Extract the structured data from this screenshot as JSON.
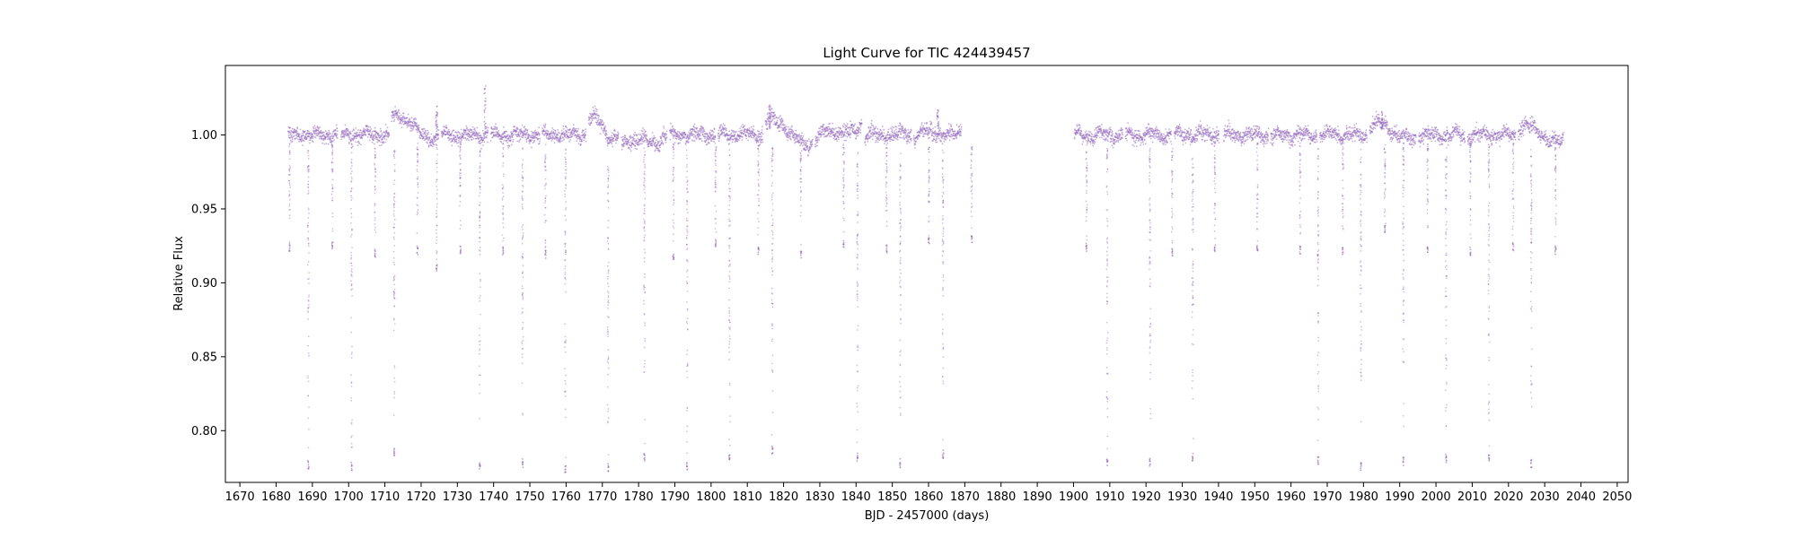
{
  "chart_data": {
    "type": "scatter",
    "title": "Light Curve for TIC 424439457",
    "xlabel": "BJD - 2457000 (days)",
    "ylabel": "Relative Flux",
    "xlim": [
      1666,
      2053
    ],
    "ylim": [
      0.765,
      1.047
    ],
    "xticks": [
      1670,
      1680,
      1690,
      1700,
      1710,
      1720,
      1730,
      1740,
      1750,
      1760,
      1770,
      1780,
      1790,
      1800,
      1810,
      1820,
      1830,
      1840,
      1850,
      1860,
      1870,
      1880,
      1890,
      1900,
      1910,
      1920,
      1930,
      1940,
      1950,
      1960,
      1970,
      1980,
      1990,
      2000,
      2010,
      2020,
      2030,
      2040,
      2050
    ],
    "yticks": [
      0.8,
      0.85,
      0.9,
      0.95,
      1.0
    ],
    "ytick_labels": [
      "0.80",
      "0.85",
      "0.90",
      "0.95",
      "1.00"
    ],
    "grid": false,
    "marker_color": "#9467bd",
    "series": [
      {
        "segments": [
          [
            1683.3,
            1697.0
          ],
          [
            1697.9,
            1711.2
          ],
          [
            1711.8,
            1724.9
          ],
          [
            1725.6,
            1738.5
          ],
          [
            1739.2,
            1752.8
          ],
          [
            1753.4,
            1765.5
          ],
          [
            1766.2,
            1774.5
          ],
          [
            1775.3,
            1787.8
          ],
          [
            1788.6,
            1801.2
          ],
          [
            1801.9,
            1814.3
          ],
          [
            1815.0,
            1828.0
          ],
          [
            1828.7,
            1841.6
          ],
          [
            1842.4,
            1855.3
          ],
          [
            1855.9,
            1869.1
          ],
          [
            1900.2,
            1913.6
          ],
          [
            1914.3,
            1927.0
          ],
          [
            1927.8,
            1940.2
          ],
          [
            1941.4,
            1953.8
          ],
          [
            1954.4,
            1967.2
          ],
          [
            1967.9,
            1981.0
          ],
          [
            1981.7,
            1994.5
          ],
          [
            1995.2,
            2008.0
          ],
          [
            2008.7,
            2022.0
          ],
          [
            2022.7,
            2035.2
          ]
        ],
        "drifts": [
          {
            "start": 1711.8,
            "end": 1724.9,
            "from": 1.012,
            "to": 0.998
          },
          {
            "start": 1766.2,
            "end": 1774.5,
            "from": 1.011,
            "to": 0.998
          },
          {
            "start": 1775.3,
            "end": 1787.8,
            "from": 0.992,
            "to": 1.0
          },
          {
            "start": 1815.0,
            "end": 1828.0,
            "from": 1.01,
            "to": 0.994
          },
          {
            "start": 1828.7,
            "end": 1841.6,
            "from": 0.996,
            "to": 1.008
          },
          {
            "start": 1855.9,
            "end": 1869.1,
            "from": 0.998,
            "to": 1.004
          },
          {
            "start": 1981.7,
            "end": 1994.5,
            "from": 1.006,
            "to": 0.999
          },
          {
            "start": 2022.7,
            "end": 2035.2,
            "from": 1.005,
            "to": 0.997
          }
        ],
        "deep_eclipses": [
          {
            "x": 1688.9,
            "min": 0.774
          },
          {
            "x": 1700.8,
            "min": 0.773
          },
          {
            "x": 1712.6,
            "min": 0.783
          },
          {
            "x": 1736.2,
            "min": 0.774
          },
          {
            "x": 1748.0,
            "min": 0.775
          },
          {
            "x": 1759.8,
            "min": 0.771
          },
          {
            "x": 1771.6,
            "min": 0.772
          },
          {
            "x": 1781.6,
            "min": 0.779
          },
          {
            "x": 1793.4,
            "min": 0.773
          },
          {
            "x": 1805.1,
            "min": 0.779
          },
          {
            "x": 1816.9,
            "min": 0.784
          },
          {
            "x": 1840.4,
            "min": 0.779
          },
          {
            "x": 1852.2,
            "min": 0.775
          },
          {
            "x": 1864.0,
            "min": 0.781
          },
          {
            "x": 1909.3,
            "min": 0.776
          },
          {
            "x": 1921.1,
            "min": 0.776
          },
          {
            "x": 1932.9,
            "min": 0.779
          },
          {
            "x": 1967.5,
            "min": 0.777
          },
          {
            "x": 1979.3,
            "min": 0.773
          },
          {
            "x": 1991.0,
            "min": 0.776
          },
          {
            "x": 2002.8,
            "min": 0.778
          },
          {
            "x": 2014.6,
            "min": 0.779
          },
          {
            "x": 2026.3,
            "min": 0.775
          }
        ],
        "shallow_eclipses": [
          {
            "x": 1683.7,
            "min": 0.921
          },
          {
            "x": 1695.5,
            "min": 0.923
          },
          {
            "x": 1707.3,
            "min": 0.917
          },
          {
            "x": 1719.0,
            "min": 0.919
          },
          {
            "x": 1724.3,
            "min": 0.907
          },
          {
            "x": 1730.8,
            "min": 0.919
          },
          {
            "x": 1742.6,
            "min": 0.919
          },
          {
            "x": 1754.3,
            "min": 0.916
          },
          {
            "x": 1789.6,
            "min": 0.915
          },
          {
            "x": 1801.3,
            "min": 0.924
          },
          {
            "x": 1813.1,
            "min": 0.919
          },
          {
            "x": 1824.8,
            "min": 0.916
          },
          {
            "x": 1836.6,
            "min": 0.923
          },
          {
            "x": 1848.4,
            "min": 0.92
          },
          {
            "x": 1860.1,
            "min": 0.926
          },
          {
            "x": 1871.9,
            "min": 0.926
          },
          {
            "x": 1903.6,
            "min": 0.921
          },
          {
            "x": 1927.2,
            "min": 0.918
          },
          {
            "x": 1939.0,
            "min": 0.921
          },
          {
            "x": 1950.7,
            "min": 0.921
          },
          {
            "x": 1962.5,
            "min": 0.919
          },
          {
            "x": 1974.3,
            "min": 0.919
          },
          {
            "x": 1985.9,
            "min": 0.933
          },
          {
            "x": 1997.7,
            "min": 0.92
          },
          {
            "x": 2009.5,
            "min": 0.918
          },
          {
            "x": 2021.3,
            "min": 0.921
          },
          {
            "x": 2033.0,
            "min": 0.919
          }
        ],
        "spikes": [
          {
            "x": 1724.3,
            "max": 1.021
          },
          {
            "x": 1737.6,
            "max": 1.034
          },
          {
            "x": 1816.2,
            "max": 1.021
          },
          {
            "x": 1862.6,
            "max": 1.017
          },
          {
            "x": 1985.1,
            "max": 1.016
          }
        ]
      }
    ]
  }
}
